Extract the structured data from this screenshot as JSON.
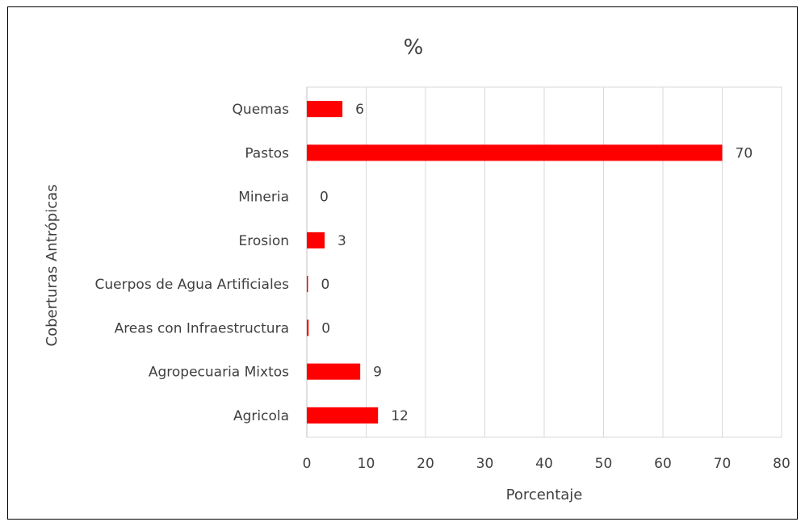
{
  "chart_data": {
    "type": "bar",
    "orientation": "horizontal",
    "title": "%",
    "xlabel": "Porcentaje",
    "ylabel": "Coberturas Antrópicas",
    "xlim": [
      0,
      80
    ],
    "xticks": [
      0,
      10,
      20,
      30,
      40,
      50,
      60,
      70,
      80
    ],
    "grid": "vertical",
    "legend": "none",
    "bar_color": "#ff0000",
    "categories": [
      "Quemas",
      "Pastos",
      "Mineria",
      "Erosion",
      "Cuerpos de Agua Artificiales",
      "Areas con Infraestructura",
      "Agropecuaria Mixtos",
      "Agricola"
    ],
    "values": [
      6,
      70,
      0,
      3,
      0.2,
      0.3,
      9,
      12
    ],
    "data_labels": [
      "6",
      "70",
      "0",
      "3",
      "0",
      "0",
      "9",
      "12"
    ]
  }
}
